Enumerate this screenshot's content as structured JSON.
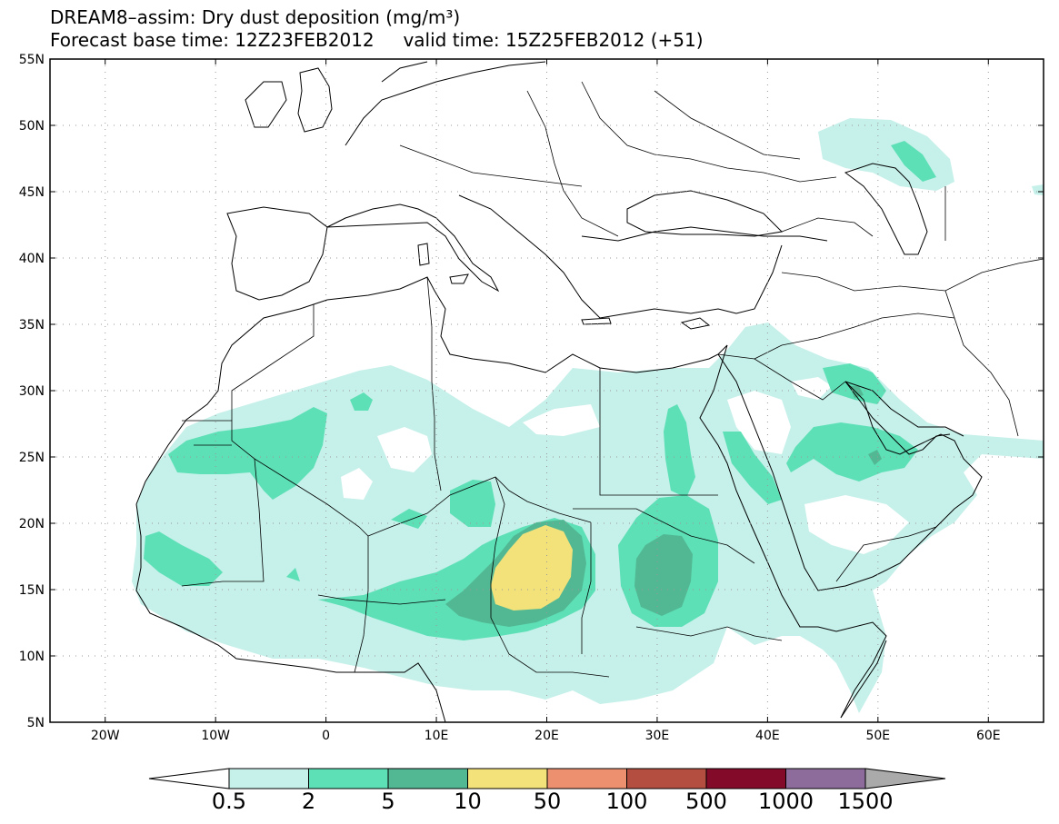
{
  "title": {
    "line1": "DREAM8–assim: Dry dust deposition (mg/m³)",
    "line2": "Forecast base time: 12Z23FEB2012     valid time: 15Z25FEB2012 (+51)"
  },
  "map": {
    "lon_range": [
      -25,
      65
    ],
    "lat_range": [
      5,
      55
    ],
    "lat_ticks": [
      "5N",
      "10N",
      "15N",
      "20N",
      "25N",
      "30N",
      "35N",
      "40N",
      "45N",
      "50N",
      "55N"
    ],
    "lon_ticks": [
      "20W",
      "10W",
      "0",
      "10E",
      "20E",
      "30E",
      "40E",
      "50E",
      "60E"
    ],
    "grid": "dotted"
  },
  "colorbar": {
    "labels": [
      "0.5",
      "2",
      "5",
      "10",
      "50",
      "100",
      "500",
      "1000",
      "1500"
    ],
    "colors": [
      "#c6f0ea",
      "#5de0b6",
      "#52b893",
      "#f3e27a",
      "#ec9070",
      "#b34e40",
      "#830a28",
      "#8d6c9c"
    ],
    "under_color": "#ffffff",
    "over_color": "#aaaaaa"
  },
  "legend_colors": {
    "c1": "#c6f0ea",
    "c2": "#5de0b6",
    "c3": "#52b893",
    "c4": "#f3e27a"
  }
}
